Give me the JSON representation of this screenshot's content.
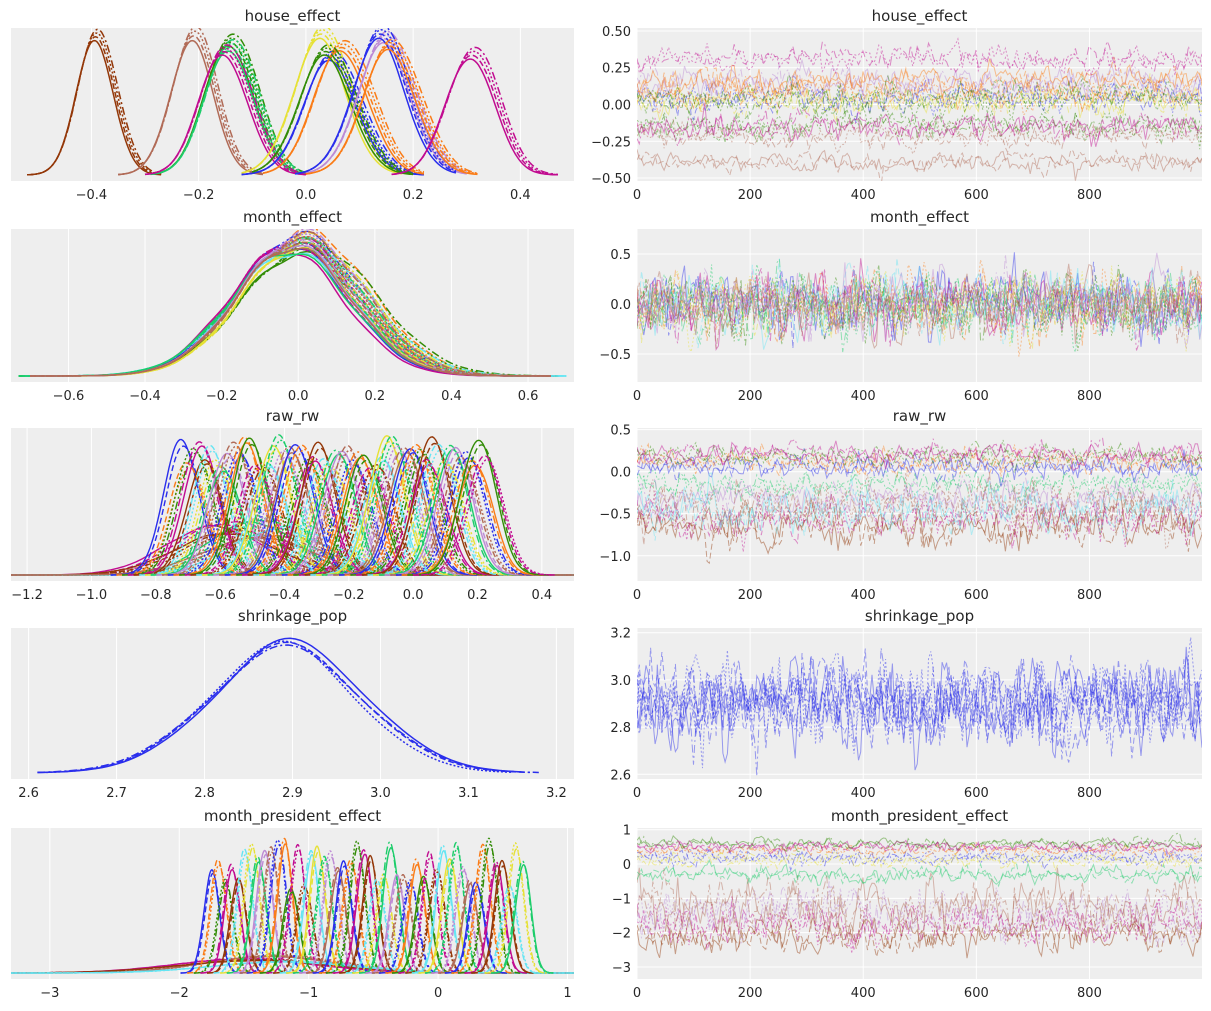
{
  "colors": {
    "panel_background": "#eeeeee",
    "grid": "#ffffff",
    "text": "#262626",
    "cycle": [
      "#2a2eec",
      "#fa7c17",
      "#328c06",
      "#c10c90",
      "#933708",
      "#65e5f3",
      "#e6e135",
      "#1ccd6a",
      "#bd8ad5",
      "#b16b57"
    ]
  },
  "chart_data": [
    {
      "type": "area",
      "panel": "kde",
      "title": "house_effect",
      "xlim": [
        -0.55,
        0.5
      ],
      "xticks": [
        -0.4,
        -0.2,
        0.0,
        0.2,
        0.4
      ],
      "xtick_labels": [
        "−0.4",
        "−0.2",
        "0.0",
        "0.2",
        "0.4"
      ],
      "yticks": [],
      "ytick_labels": [],
      "grid": true,
      "series": [
        {
          "color": "#933708",
          "mean": -0.39,
          "sd": 0.035,
          "height": 1.0,
          "lo": -0.52,
          "hi": -0.27
        },
        {
          "color": "#b16b57",
          "mean": -0.21,
          "sd": 0.04,
          "height": 1.0,
          "lo": -0.35,
          "hi": -0.08
        },
        {
          "color": "#328c06",
          "mean": -0.14,
          "sd": 0.045,
          "height": 1.0,
          "lo": -0.28,
          "hi": 0.0
        },
        {
          "color": "#1ccd6a",
          "mean": -0.14,
          "sd": 0.045,
          "height": 0.96,
          "lo": -0.29,
          "hi": 0.0
        },
        {
          "color": "#c10c90",
          "mean": -0.15,
          "sd": 0.045,
          "height": 0.92,
          "lo": -0.3,
          "hi": 0.0
        },
        {
          "color": "#e6e135",
          "mean": 0.03,
          "sd": 0.05,
          "height": 1.0,
          "lo": -0.12,
          "hi": 0.18
        },
        {
          "color": "#2a2eec",
          "mean": 0.05,
          "sd": 0.05,
          "height": 0.85,
          "lo": -0.12,
          "hi": 0.22
        },
        {
          "color": "#fa7c17",
          "mean": 0.07,
          "sd": 0.05,
          "height": 0.95,
          "lo": -0.08,
          "hi": 0.22
        },
        {
          "color": "#328c06",
          "mean": 0.04,
          "sd": 0.05,
          "height": 0.88,
          "lo": -0.1,
          "hi": 0.2
        },
        {
          "color": "#bd8ad5",
          "mean": 0.15,
          "sd": 0.05,
          "height": 0.97,
          "lo": 0.0,
          "hi": 0.3
        },
        {
          "color": "#2a2eec",
          "mean": 0.14,
          "sd": 0.05,
          "height": 1.0,
          "lo": -0.02,
          "hi": 0.28
        },
        {
          "color": "#fa7c17",
          "mean": 0.16,
          "sd": 0.05,
          "height": 0.93,
          "lo": 0.0,
          "hi": 0.32
        },
        {
          "color": "#c10c90",
          "mean": 0.31,
          "sd": 0.045,
          "height": 0.9,
          "lo": 0.16,
          "hi": 0.47
        }
      ]
    },
    {
      "type": "line",
      "panel": "trace",
      "title": "house_effect",
      "xlim": [
        0,
        999
      ],
      "ylim": [
        -0.52,
        0.52
      ],
      "xticks": [
        0,
        200,
        400,
        600,
        800
      ],
      "xtick_labels": [
        "0",
        "200",
        "400",
        "600",
        "800"
      ],
      "yticks": [
        -0.5,
        -0.25,
        0.0,
        0.25,
        0.5
      ],
      "ytick_labels": [
        "−0.50",
        "−0.25",
        "0.00",
        "0.25",
        "0.50"
      ],
      "grid": true,
      "series": [
        {
          "color": "#b16b57",
          "mean": -0.39,
          "sd": 0.035
        },
        {
          "color": "#b16b57",
          "mean": -0.21,
          "sd": 0.04
        },
        {
          "color": "#328c06",
          "mean": -0.14,
          "sd": 0.045
        },
        {
          "color": "#c10c90",
          "mean": -0.15,
          "sd": 0.045
        },
        {
          "color": "#e6e135",
          "mean": 0.03,
          "sd": 0.05
        },
        {
          "color": "#2a2eec",
          "mean": 0.05,
          "sd": 0.05
        },
        {
          "color": "#fa7c17",
          "mean": 0.07,
          "sd": 0.05
        },
        {
          "color": "#bd8ad5",
          "mean": 0.15,
          "sd": 0.05
        },
        {
          "color": "#fa7c17",
          "mean": 0.16,
          "sd": 0.05
        },
        {
          "color": "#328c06",
          "mean": 0.04,
          "sd": 0.05
        },
        {
          "color": "#c10c90",
          "mean": 0.31,
          "sd": 0.045
        }
      ]
    },
    {
      "type": "area",
      "panel": "kde",
      "title": "month_effect",
      "xlim": [
        -0.75,
        0.72
      ],
      "xticks": [
        -0.6,
        -0.4,
        -0.2,
        0.0,
        0.2,
        0.4,
        0.6
      ],
      "xtick_labels": [
        "−0.6",
        "−0.4",
        "−0.2",
        "0.0",
        "0.2",
        "0.4",
        "0.6"
      ],
      "yticks": [],
      "ytick_labels": [],
      "grid": true,
      "series": [
        {
          "color": "#2a2eec",
          "mean": -0.01,
          "sd": 0.15,
          "height": 0.98,
          "lo": -0.72,
          "hi": 0.68
        },
        {
          "color": "#fa7c17",
          "mean": 0.01,
          "sd": 0.155,
          "height": 1.0,
          "lo": -0.7,
          "hi": 0.66
        },
        {
          "color": "#328c06",
          "mean": 0.02,
          "sd": 0.16,
          "height": 0.92,
          "lo": -0.73,
          "hi": 0.68
        },
        {
          "color": "#c10c90",
          "mean": -0.02,
          "sd": 0.15,
          "height": 0.95,
          "lo": -0.7,
          "hi": 0.65
        },
        {
          "color": "#933708",
          "mean": 0.0,
          "sd": 0.15,
          "height": 0.97,
          "lo": -0.7,
          "hi": 0.66
        },
        {
          "color": "#65e5f3",
          "mean": 0.0,
          "sd": 0.16,
          "height": 0.93,
          "lo": -0.72,
          "hi": 0.7
        },
        {
          "color": "#e6e135",
          "mean": 0.01,
          "sd": 0.15,
          "height": 0.96,
          "lo": -0.7,
          "hi": 0.66
        },
        {
          "color": "#1ccd6a",
          "mean": -0.01,
          "sd": 0.155,
          "height": 0.94,
          "lo": -0.73,
          "hi": 0.66
        },
        {
          "color": "#bd8ad5",
          "mean": 0.0,
          "sd": 0.15,
          "height": 0.99,
          "lo": -0.7,
          "hi": 0.66
        },
        {
          "color": "#b16b57",
          "mean": 0.0,
          "sd": 0.15,
          "height": 0.97,
          "lo": -0.7,
          "hi": 0.66
        }
      ]
    },
    {
      "type": "line",
      "panel": "trace",
      "title": "month_effect",
      "xlim": [
        0,
        999
      ],
      "ylim": [
        -0.78,
        0.75
      ],
      "xticks": [
        0,
        200,
        400,
        600,
        800
      ],
      "xtick_labels": [
        "0",
        "200",
        "400",
        "600",
        "800"
      ],
      "yticks": [
        -0.5,
        0.0,
        0.5
      ],
      "ytick_labels": [
        "−0.5",
        "0.0",
        "0.5"
      ],
      "grid": true,
      "series": [
        {
          "color": "#2a2eec",
          "mean": 0.0,
          "sd": 0.15
        },
        {
          "color": "#fa7c17",
          "mean": 0.0,
          "sd": 0.15
        },
        {
          "color": "#328c06",
          "mean": 0.0,
          "sd": 0.15
        },
        {
          "color": "#c10c90",
          "mean": 0.0,
          "sd": 0.15
        },
        {
          "color": "#65e5f3",
          "mean": 0.0,
          "sd": 0.15
        },
        {
          "color": "#e6e135",
          "mean": 0.0,
          "sd": 0.15
        },
        {
          "color": "#1ccd6a",
          "mean": 0.0,
          "sd": 0.15
        },
        {
          "color": "#bd8ad5",
          "mean": 0.0,
          "sd": 0.15
        },
        {
          "color": "#b16b57",
          "mean": 0.0,
          "sd": 0.15
        }
      ]
    },
    {
      "type": "area",
      "panel": "kde",
      "title": "raw_rw",
      "xlim": [
        -1.25,
        0.5
      ],
      "xticks": [
        -1.2,
        -1.0,
        -0.8,
        -0.6,
        -0.4,
        -0.2,
        0.0,
        0.2,
        0.4
      ],
      "xtick_labels": [
        "−1.2",
        "−1.0",
        "−0.8",
        "−0.6",
        "−0.4",
        "−0.2",
        "0.0",
        "0.2",
        "0.4"
      ],
      "yticks": [],
      "ytick_labels": [],
      "grid": true,
      "narrow": {
        "from": -0.72,
        "to": 0.22,
        "count": 54,
        "sd": 0.055,
        "height_min": 0.78,
        "height_max": 1.0
      },
      "broad": [
        {
          "color": "#c10c90",
          "mean": -0.62,
          "sd": 0.15,
          "height": 0.35
        },
        {
          "color": "#1ccd6a",
          "mean": -0.5,
          "sd": 0.14,
          "height": 0.38
        },
        {
          "color": "#933708",
          "mean": -0.58,
          "sd": 0.16,
          "height": 0.3
        },
        {
          "color": "#65e5f3",
          "mean": -0.42,
          "sd": 0.15,
          "height": 0.33
        },
        {
          "color": "#b16b57",
          "mean": -0.48,
          "sd": 0.17,
          "height": 0.27
        }
      ]
    },
    {
      "type": "line",
      "panel": "trace",
      "title": "raw_rw",
      "xlim": [
        0,
        999
      ],
      "ylim": [
        -1.3,
        0.52
      ],
      "xticks": [
        0,
        200,
        400,
        600,
        800
      ],
      "xtick_labels": [
        "0",
        "200",
        "400",
        "600",
        "800"
      ],
      "yticks": [
        -1.0,
        -0.5,
        0.0,
        0.5
      ],
      "ytick_labels": [
        "−1.0",
        "−0.5",
        "0.0",
        "0.5"
      ],
      "grid": true,
      "series": [
        {
          "color": "#933708",
          "mean": -0.65,
          "sd": 0.12
        },
        {
          "color": "#c10c90",
          "mean": -0.55,
          "sd": 0.12
        },
        {
          "color": "#1ccd6a",
          "mean": -0.15,
          "sd": 0.08
        },
        {
          "color": "#bd8ad5",
          "mean": -0.3,
          "sd": 0.09
        },
        {
          "color": "#2a2eec",
          "mean": 0.05,
          "sd": 0.07
        },
        {
          "color": "#fa7c17",
          "mean": 0.12,
          "sd": 0.07
        },
        {
          "color": "#328c06",
          "mean": 0.18,
          "sd": 0.06
        },
        {
          "color": "#c10c90",
          "mean": 0.22,
          "sd": 0.06
        },
        {
          "color": "#65e5f3",
          "mean": -0.45,
          "sd": 0.13
        },
        {
          "color": "#b16b57",
          "mean": -0.4,
          "sd": 0.16
        }
      ]
    },
    {
      "type": "area",
      "panel": "kde",
      "title": "shrinkage_pop",
      "xlim": [
        2.58,
        3.22
      ],
      "xticks": [
        2.6,
        2.7,
        2.8,
        2.9,
        3.0,
        3.1,
        3.2
      ],
      "xtick_labels": [
        "2.6",
        "2.7",
        "2.8",
        "2.9",
        "3.0",
        "3.1",
        "3.2"
      ],
      "yticks": [],
      "ytick_labels": [],
      "grid": true,
      "series": [
        {
          "color": "#2a2eec",
          "mean": 2.905,
          "sd": 0.085,
          "height": 1.0,
          "lo": 2.61,
          "hi": 3.16,
          "dash": ""
        },
        {
          "color": "#2a2eec",
          "mean": 2.9,
          "sd": 0.087,
          "height": 0.95,
          "lo": 2.61,
          "hi": 3.18,
          "dash": "8 3 2 3"
        },
        {
          "color": "#2a2eec",
          "mean": 2.895,
          "sd": 0.082,
          "height": 0.98,
          "lo": 2.62,
          "hi": 3.15,
          "dash": "2 2"
        },
        {
          "color": "#2a2eec",
          "mean": 2.9,
          "sd": 0.085,
          "height": 0.97,
          "lo": 2.62,
          "hi": 3.17,
          "dash": "6 3"
        }
      ]
    },
    {
      "type": "line",
      "panel": "trace",
      "title": "shrinkage_pop",
      "xlim": [
        0,
        999
      ],
      "ylim": [
        2.58,
        3.22
      ],
      "xticks": [
        0,
        200,
        400,
        600,
        800
      ],
      "xtick_labels": [
        "0",
        "200",
        "400",
        "600",
        "800"
      ],
      "yticks": [
        2.6,
        2.8,
        3.0,
        3.2
      ],
      "ytick_labels": [
        "2.6",
        "2.8",
        "3.0",
        "3.2"
      ],
      "grid": true,
      "series": [
        {
          "color": "#2a2eec",
          "mean": 2.9,
          "sd": 0.085
        },
        {
          "color": "#2a2eec",
          "mean": 2.9,
          "sd": 0.085
        },
        {
          "color": "#2a2eec",
          "mean": 2.9,
          "sd": 0.085
        },
        {
          "color": "#2a2eec",
          "mean": 2.9,
          "sd": 0.085
        }
      ]
    },
    {
      "type": "area",
      "panel": "kde",
      "title": "month_president_effect",
      "xlim": [
        -3.3,
        1.05
      ],
      "xticks": [
        -3,
        -2,
        -1,
        0,
        1
      ],
      "xtick_labels": [
        "−3",
        "−2",
        "−1",
        "0",
        "1"
      ],
      "yticks": [],
      "ytick_labels": [],
      "grid": true,
      "narrow": {
        "from": -1.75,
        "to": 0.65,
        "count": 48,
        "sd": 0.06,
        "height_min": 0.62,
        "height_max": 1.0
      },
      "broad": [
        {
          "color": "#c10c90",
          "mean": -1.5,
          "sd": 0.55,
          "height": 0.1
        },
        {
          "color": "#b16b57",
          "mean": -1.3,
          "sd": 0.5,
          "height": 0.12
        },
        {
          "color": "#933708",
          "mean": -1.4,
          "sd": 0.6,
          "height": 0.09
        },
        {
          "color": "#65e5f3",
          "mean": -1.2,
          "sd": 0.55,
          "height": 0.08
        }
      ]
    },
    {
      "type": "line",
      "panel": "trace",
      "title": "month_president_effect",
      "xlim": [
        0,
        999
      ],
      "ylim": [
        -3.35,
        1.05
      ],
      "xticks": [
        0,
        200,
        400,
        600,
        800
      ],
      "xtick_labels": [
        "0",
        "200",
        "400",
        "600",
        "800"
      ],
      "yticks": [
        -3,
        -2,
        -1,
        0,
        1
      ],
      "ytick_labels": [
        "−3",
        "−2",
        "−1",
        "0",
        "1"
      ],
      "grid": true,
      "series": [
        {
          "color": "#933708",
          "mean": -2.05,
          "sd": 0.25
        },
        {
          "color": "#c10c90",
          "mean": -1.75,
          "sd": 0.3
        },
        {
          "color": "#bd8ad5",
          "mean": -1.4,
          "sd": 0.35
        },
        {
          "color": "#b16b57",
          "mean": -1.2,
          "sd": 0.4
        },
        {
          "color": "#1ccd6a",
          "mean": -0.3,
          "sd": 0.12
        },
        {
          "color": "#2a2eec",
          "mean": 0.2,
          "sd": 0.1
        },
        {
          "color": "#fa7c17",
          "mean": 0.4,
          "sd": 0.08
        },
        {
          "color": "#328c06",
          "mean": 0.6,
          "sd": 0.08
        },
        {
          "color": "#c10c90",
          "mean": 0.5,
          "sd": 0.08
        },
        {
          "color": "#e6e135",
          "mean": 0.1,
          "sd": 0.1
        }
      ]
    }
  ]
}
